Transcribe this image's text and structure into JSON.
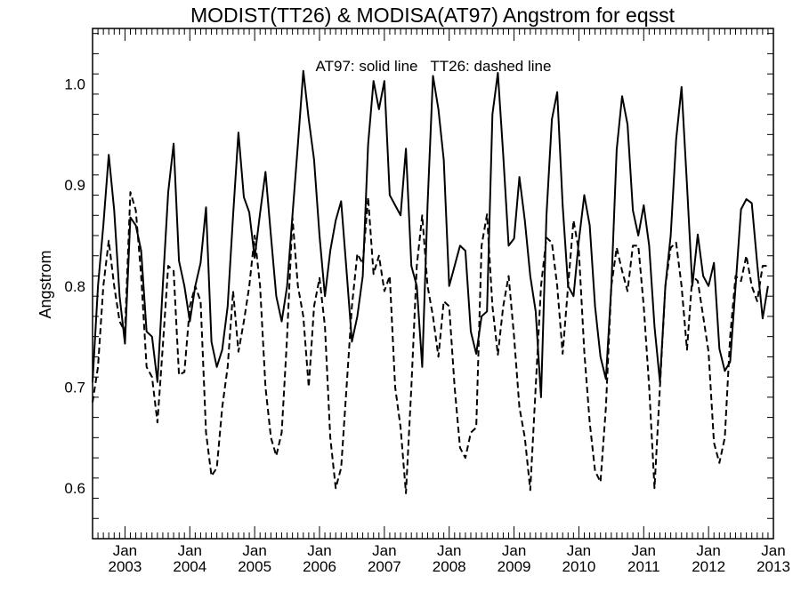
{
  "chart_data": {
    "type": "line",
    "title": "MODIST(TT26) & MODISA(AT97)  Angstrom for eqsst",
    "ylabel": "Angstrom",
    "xlabel": "",
    "annotation": "AT97: solid line   TT26: dashed line",
    "ylim": [
      0.55,
      1.055
    ],
    "xlim": [
      "2002-07",
      "2013-01"
    ],
    "yticks": [
      0.6,
      0.7,
      0.8,
      0.9,
      1.0
    ],
    "ytick_labels": [
      "0.6",
      "0.7",
      "0.8",
      "0.9",
      "1.0"
    ],
    "xticks": [
      {
        "top": "Jan",
        "bottom": "2003",
        "date": "2003-01"
      },
      {
        "top": "Jan",
        "bottom": "2004",
        "date": "2004-01"
      },
      {
        "top": "Jan",
        "bottom": "2005",
        "date": "2005-01"
      },
      {
        "top": "Jan",
        "bottom": "2006",
        "date": "2006-01"
      },
      {
        "top": "Jan",
        "bottom": "2007",
        "date": "2007-01"
      },
      {
        "top": "Jan",
        "bottom": "2008",
        "date": "2008-01"
      },
      {
        "top": "Jan",
        "bottom": "2009",
        "date": "2009-01"
      },
      {
        "top": "Jan",
        "bottom": "2010",
        "date": "2010-01"
      },
      {
        "top": "Jan",
        "bottom": "2011",
        "date": "2011-01"
      },
      {
        "top": "Jan",
        "bottom": "2012",
        "date": "2012-01"
      },
      {
        "top": "Jan",
        "bottom": "2013",
        "date": "2013-01"
      }
    ],
    "series": [
      {
        "name": "AT97",
        "style": "solid",
        "color": "#000000",
        "points": [
          [
            "2002-07",
            0.705
          ],
          [
            "2002-08",
            0.8
          ],
          [
            "2002-09",
            0.86
          ],
          [
            "2002-10",
            0.93
          ],
          [
            "2002-11",
            0.875
          ],
          [
            "2002-12",
            0.79
          ],
          [
            "2003-01",
            0.743
          ],
          [
            "2003-02",
            0.868
          ],
          [
            "2003-03",
            0.86
          ],
          [
            "2003-04",
            0.835
          ],
          [
            "2003-05",
            0.755
          ],
          [
            "2003-06",
            0.75
          ],
          [
            "2003-07",
            0.705
          ],
          [
            "2003-08",
            0.8
          ],
          [
            "2003-09",
            0.893
          ],
          [
            "2003-10",
            0.941
          ],
          [
            "2003-11",
            0.825
          ],
          [
            "2003-12",
            0.8
          ],
          [
            "2004-01",
            0.765
          ],
          [
            "2004-02",
            0.8
          ],
          [
            "2004-03",
            0.823
          ],
          [
            "2004-04",
            0.878
          ],
          [
            "2004-05",
            0.745
          ],
          [
            "2004-06",
            0.72
          ],
          [
            "2004-07",
            0.737
          ],
          [
            "2004-08",
            0.78
          ],
          [
            "2004-09",
            0.87
          ],
          [
            "2004-10",
            0.952
          ],
          [
            "2004-11",
            0.888
          ],
          [
            "2004-12",
            0.873
          ],
          [
            "2005-01",
            0.828
          ],
          [
            "2005-02",
            0.872
          ],
          [
            "2005-03",
            0.913
          ],
          [
            "2005-04",
            0.85
          ],
          [
            "2005-05",
            0.79
          ],
          [
            "2005-06",
            0.765
          ],
          [
            "2005-07",
            0.8
          ],
          [
            "2005-08",
            0.87
          ],
          [
            "2005-09",
            0.94
          ],
          [
            "2005-10",
            1.013
          ],
          [
            "2005-11",
            0.965
          ],
          [
            "2005-12",
            0.925
          ],
          [
            "2006-01",
            0.85
          ],
          [
            "2006-02",
            0.79
          ],
          [
            "2006-03",
            0.835
          ],
          [
            "2006-04",
            0.865
          ],
          [
            "2006-05",
            0.884
          ],
          [
            "2006-06",
            0.815
          ],
          [
            "2006-07",
            0.745
          ],
          [
            "2006-08",
            0.77
          ],
          [
            "2006-09",
            0.81
          ],
          [
            "2006-10",
            0.94
          ],
          [
            "2006-11",
            1.003
          ],
          [
            "2006-12",
            0.975
          ],
          [
            "2007-01",
            1.003
          ],
          [
            "2007-02",
            0.89
          ],
          [
            "2007-03",
            0.88
          ],
          [
            "2007-04",
            0.87
          ],
          [
            "2007-05",
            0.936
          ],
          [
            "2007-06",
            0.82
          ],
          [
            "2007-07",
            0.8
          ],
          [
            "2007-08",
            0.72
          ],
          [
            "2007-09",
            0.88
          ],
          [
            "2007-10",
            1.008
          ],
          [
            "2007-11",
            0.975
          ],
          [
            "2007-12",
            0.925
          ],
          [
            "2008-01",
            0.8
          ],
          [
            "2008-02",
            0.82
          ],
          [
            "2008-03",
            0.84
          ],
          [
            "2008-04",
            0.835
          ],
          [
            "2008-05",
            0.755
          ],
          [
            "2008-06",
            0.733
          ],
          [
            "2008-07",
            0.77
          ],
          [
            "2008-08",
            0.775
          ],
          [
            "2008-09",
            0.97
          ],
          [
            "2008-10",
            1.011
          ],
          [
            "2008-11",
            0.93
          ],
          [
            "2008-12",
            0.84
          ],
          [
            "2009-01",
            0.847
          ],
          [
            "2009-02",
            0.908
          ],
          [
            "2009-03",
            0.865
          ],
          [
            "2009-04",
            0.81
          ],
          [
            "2009-05",
            0.775
          ],
          [
            "2009-06",
            0.69
          ],
          [
            "2009-07",
            0.87
          ],
          [
            "2009-08",
            0.965
          ],
          [
            "2009-09",
            0.992
          ],
          [
            "2009-10",
            0.88
          ],
          [
            "2009-11",
            0.8
          ],
          [
            "2009-12",
            0.79
          ],
          [
            "2010-01",
            0.845
          ],
          [
            "2010-02",
            0.89
          ],
          [
            "2010-03",
            0.86
          ],
          [
            "2010-04",
            0.78
          ],
          [
            "2010-05",
            0.73
          ],
          [
            "2010-06",
            0.708
          ],
          [
            "2010-07",
            0.8
          ],
          [
            "2010-08",
            0.935
          ],
          [
            "2010-09",
            0.988
          ],
          [
            "2010-10",
            0.96
          ],
          [
            "2010-11",
            0.875
          ],
          [
            "2010-12",
            0.85
          ],
          [
            "2011-01",
            0.88
          ],
          [
            "2011-02",
            0.84
          ],
          [
            "2011-03",
            0.76
          ],
          [
            "2011-04",
            0.705
          ],
          [
            "2011-05",
            0.8
          ],
          [
            "2011-06",
            0.85
          ],
          [
            "2011-07",
            0.945
          ],
          [
            "2011-08",
            0.997
          ],
          [
            "2011-09",
            0.9
          ],
          [
            "2011-10",
            0.8
          ],
          [
            "2011-11",
            0.851
          ],
          [
            "2011-12",
            0.81
          ],
          [
            "2012-01",
            0.8
          ],
          [
            "2012-02",
            0.823
          ],
          [
            "2012-03",
            0.738
          ],
          [
            "2012-04",
            0.716
          ],
          [
            "2012-05",
            0.725
          ],
          [
            "2012-06",
            0.8
          ],
          [
            "2012-07",
            0.876
          ],
          [
            "2012-08",
            0.886
          ],
          [
            "2012-09",
            0.882
          ],
          [
            "2012-10",
            0.822
          ],
          [
            "2012-11",
            0.768
          ],
          [
            "2012-12",
            0.8
          ]
        ]
      },
      {
        "name": "TT26",
        "style": "dashed",
        "color": "#000000",
        "points": [
          [
            "2002-07",
            0.685
          ],
          [
            "2002-08",
            0.72
          ],
          [
            "2002-09",
            0.8
          ],
          [
            "2002-10",
            0.845
          ],
          [
            "2002-11",
            0.8
          ],
          [
            "2002-12",
            0.765
          ],
          [
            "2003-01",
            0.755
          ],
          [
            "2003-02",
            0.893
          ],
          [
            "2003-03",
            0.875
          ],
          [
            "2003-04",
            0.81
          ],
          [
            "2003-05",
            0.72
          ],
          [
            "2003-06",
            0.71
          ],
          [
            "2003-07",
            0.665
          ],
          [
            "2003-08",
            0.74
          ],
          [
            "2003-09",
            0.82
          ],
          [
            "2003-10",
            0.815
          ],
          [
            "2003-11",
            0.712
          ],
          [
            "2003-12",
            0.715
          ],
          [
            "2004-01",
            0.78
          ],
          [
            "2004-02",
            0.8
          ],
          [
            "2004-03",
            0.785
          ],
          [
            "2004-04",
            0.655
          ],
          [
            "2004-05",
            0.612
          ],
          [
            "2004-06",
            0.62
          ],
          [
            "2004-07",
            0.68
          ],
          [
            "2004-08",
            0.72
          ],
          [
            "2004-09",
            0.795
          ],
          [
            "2004-10",
            0.735
          ],
          [
            "2004-11",
            0.765
          ],
          [
            "2004-12",
            0.8
          ],
          [
            "2005-01",
            0.85
          ],
          [
            "2005-02",
            0.8
          ],
          [
            "2005-03",
            0.7
          ],
          [
            "2005-04",
            0.65
          ],
          [
            "2005-05",
            0.632
          ],
          [
            "2005-06",
            0.655
          ],
          [
            "2005-07",
            0.75
          ],
          [
            "2005-08",
            0.868
          ],
          [
            "2005-09",
            0.8
          ],
          [
            "2005-10",
            0.77
          ],
          [
            "2005-11",
            0.7
          ],
          [
            "2005-12",
            0.78
          ],
          [
            "2006-01",
            0.808
          ],
          [
            "2006-02",
            0.76
          ],
          [
            "2006-03",
            0.65
          ],
          [
            "2006-04",
            0.6
          ],
          [
            "2006-05",
            0.62
          ],
          [
            "2006-06",
            0.7
          ],
          [
            "2006-07",
            0.78
          ],
          [
            "2006-08",
            0.832
          ],
          [
            "2006-09",
            0.822
          ],
          [
            "2006-10",
            0.888
          ],
          [
            "2006-11",
            0.812
          ],
          [
            "2006-12",
            0.83
          ],
          [
            "2007-01",
            0.795
          ],
          [
            "2007-02",
            0.81
          ],
          [
            "2007-03",
            0.7
          ],
          [
            "2007-04",
            0.66
          ],
          [
            "2007-05",
            0.595
          ],
          [
            "2007-06",
            0.7
          ],
          [
            "2007-07",
            0.82
          ],
          [
            "2007-08",
            0.87
          ],
          [
            "2007-09",
            0.8
          ],
          [
            "2007-10",
            0.77
          ],
          [
            "2007-11",
            0.73
          ],
          [
            "2007-12",
            0.785
          ],
          [
            "2008-01",
            0.78
          ],
          [
            "2008-02",
            0.7
          ],
          [
            "2008-03",
            0.64
          ],
          [
            "2008-04",
            0.63
          ],
          [
            "2008-05",
            0.655
          ],
          [
            "2008-06",
            0.66
          ],
          [
            "2008-07",
            0.84
          ],
          [
            "2008-08",
            0.871
          ],
          [
            "2008-09",
            0.78
          ],
          [
            "2008-10",
            0.732
          ],
          [
            "2008-11",
            0.78
          ],
          [
            "2008-12",
            0.81
          ],
          [
            "2009-01",
            0.75
          ],
          [
            "2009-02",
            0.68
          ],
          [
            "2009-03",
            0.65
          ],
          [
            "2009-04",
            0.598
          ],
          [
            "2009-05",
            0.7
          ],
          [
            "2009-06",
            0.8
          ],
          [
            "2009-07",
            0.848
          ],
          [
            "2009-08",
            0.843
          ],
          [
            "2009-09",
            0.8
          ],
          [
            "2009-10",
            0.733
          ],
          [
            "2009-11",
            0.8
          ],
          [
            "2009-12",
            0.865
          ],
          [
            "2010-01",
            0.835
          ],
          [
            "2010-02",
            0.735
          ],
          [
            "2010-03",
            0.665
          ],
          [
            "2010-04",
            0.617
          ],
          [
            "2010-05",
            0.606
          ],
          [
            "2010-06",
            0.68
          ],
          [
            "2010-07",
            0.8
          ],
          [
            "2010-08",
            0.838
          ],
          [
            "2010-09",
            0.815
          ],
          [
            "2010-10",
            0.795
          ],
          [
            "2010-11",
            0.84
          ],
          [
            "2010-12",
            0.84
          ],
          [
            "2011-01",
            0.78
          ],
          [
            "2011-02",
            0.7
          ],
          [
            "2011-03",
            0.6
          ],
          [
            "2011-04",
            0.7
          ],
          [
            "2011-05",
            0.8
          ],
          [
            "2011-06",
            0.838
          ],
          [
            "2011-07",
            0.843
          ],
          [
            "2011-08",
            0.8
          ],
          [
            "2011-09",
            0.737
          ],
          [
            "2011-10",
            0.81
          ],
          [
            "2011-11",
            0.805
          ],
          [
            "2011-12",
            0.77
          ],
          [
            "2012-01",
            0.735
          ],
          [
            "2012-02",
            0.645
          ],
          [
            "2012-03",
            0.625
          ],
          [
            "2012-04",
            0.65
          ],
          [
            "2012-05",
            0.75
          ],
          [
            "2012-06",
            0.81
          ],
          [
            "2012-07",
            0.805
          ],
          [
            "2012-08",
            0.83
          ],
          [
            "2012-09",
            0.8
          ],
          [
            "2012-10",
            0.785
          ],
          [
            "2012-11",
            0.82
          ],
          [
            "2012-12",
            0.82
          ]
        ]
      }
    ]
  }
}
